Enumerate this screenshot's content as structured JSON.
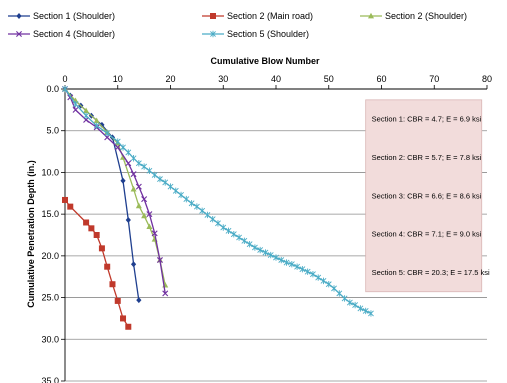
{
  "chart_data": {
    "type": "line",
    "title": "",
    "xlabel": "Cumulative Blow Number",
    "ylabel": "Cumulative Penetration Depth (in.)",
    "xlim": [
      0,
      80
    ],
    "ylim": [
      0,
      35
    ],
    "y_inverted": true,
    "x_axis_position": "top",
    "grid": {
      "horizontal": true,
      "vertical": false
    },
    "legend_position": "top",
    "x_ticks": [
      "0",
      "10",
      "20",
      "30",
      "40",
      "50",
      "60",
      "70",
      "80"
    ],
    "y_ticks": [
      "0.0",
      "5.0",
      "10.0",
      "15.0",
      "20.0",
      "25.0",
      "30.0",
      "35.0"
    ],
    "series": [
      {
        "name": "Section 1 (Shoulder)",
        "color": "#1f3f8f",
        "marker": "diamond",
        "x": [
          0,
          1,
          3,
          5,
          7,
          9,
          11,
          12,
          13,
          14
        ],
        "y": [
          0,
          0.8,
          2.0,
          3.2,
          4.3,
          5.8,
          11.0,
          15.7,
          21.0,
          25.3
        ]
      },
      {
        "name": "Section 2 (Main road)",
        "color": "#c0392b",
        "marker": "square",
        "x": [
          0,
          1,
          4,
          5,
          6,
          7,
          8,
          9,
          10,
          11,
          12
        ],
        "y": [
          13.3,
          14.1,
          16.0,
          16.7,
          17.5,
          19.1,
          21.3,
          23.4,
          25.4,
          27.5,
          28.5
        ]
      },
      {
        "name": "Section 2 (Shoulder)",
        "color": "#9bbb59",
        "marker": "triangle",
        "x": [
          0,
          2,
          4,
          6,
          8,
          10,
          11,
          13,
          14,
          15,
          16,
          17,
          18,
          19
        ],
        "y": [
          0,
          1.4,
          2.6,
          3.8,
          5.2,
          6.5,
          8.2,
          12.0,
          14.0,
          15.2,
          16.5,
          18.0,
          20.5,
          23.5
        ]
      },
      {
        "name": "Section 4 (Shoulder)",
        "color": "#7030a0",
        "marker": "x",
        "x": [
          0,
          1,
          2,
          4,
          6,
          8,
          10,
          12,
          13,
          14,
          15,
          16,
          17,
          18,
          19
        ],
        "y": [
          0,
          1.0,
          2.5,
          3.7,
          4.6,
          5.8,
          7.0,
          8.9,
          10.2,
          11.7,
          13.2,
          15.0,
          17.3,
          20.5,
          24.5
        ]
      },
      {
        "name": "Section 5 (Shoulder)",
        "color": "#4bacc6",
        "marker": "star",
        "x": [
          0,
          2,
          4,
          6,
          8,
          10,
          11,
          12,
          13,
          14,
          15,
          16,
          17,
          18,
          19,
          20,
          21,
          22,
          23,
          24,
          25,
          26,
          27,
          28,
          29,
          30,
          31,
          32,
          33,
          34,
          35,
          36,
          37,
          38,
          39,
          40,
          41,
          42,
          43,
          44,
          45,
          46,
          47,
          48,
          49,
          50,
          51,
          52,
          53,
          54,
          55,
          56,
          57,
          58
        ],
        "y": [
          0,
          1.8,
          3.2,
          4.4,
          5.3,
          6.3,
          7.0,
          7.6,
          8.3,
          8.9,
          9.3,
          9.8,
          10.3,
          10.8,
          11.2,
          11.7,
          12.2,
          12.7,
          13.2,
          13.7,
          14.1,
          14.6,
          15.1,
          15.6,
          16.1,
          16.6,
          17.0,
          17.4,
          17.8,
          18.2,
          18.6,
          19.0,
          19.3,
          19.6,
          19.9,
          20.2,
          20.5,
          20.8,
          21.0,
          21.3,
          21.6,
          21.9,
          22.2,
          22.6,
          23.0,
          23.4,
          23.9,
          24.5,
          25.1,
          25.6,
          25.9,
          26.3,
          26.6,
          26.9
        ]
      }
    ],
    "annotation_lines": [
      "Section 1: CBR = 4.7; E = 6.9 ksi",
      "Section 2: CBR = 5.7; E = 7.8 ksi",
      "Section 3: CBR = 6.6; E = 8.6 ksi",
      "Section 4: CBR = 7.1; E = 9.0 ksi",
      "Section 5: CBR = 20.3; E = 17.5 ksi"
    ],
    "annotation_box": {
      "background": "#f2dcdb",
      "border": "#d9b6b5",
      "x_range": [
        57,
        79
      ],
      "y_range": [
        1.3,
        24.3
      ]
    }
  }
}
